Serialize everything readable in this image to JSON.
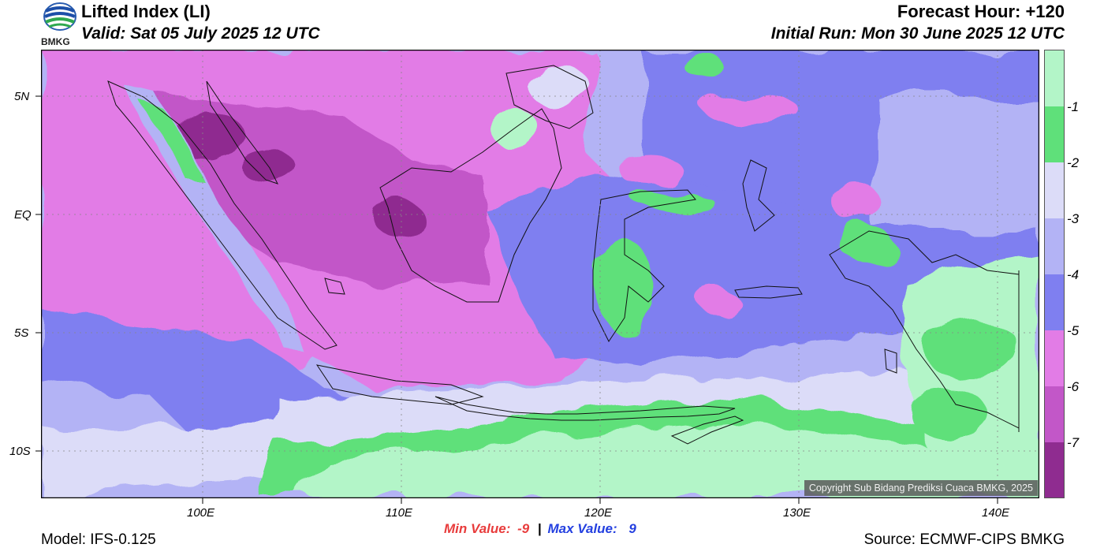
{
  "header": {
    "title": "Lifted Index (LI)",
    "valid": "Valid: Sat 05 July 2025 12 UTC",
    "forecast_hour": "Forecast Hour: +120",
    "initial_run": "Initial Run: Mon 30 June 2025 12 UTC",
    "logo_text": "BMKG"
  },
  "map": {
    "lat_labels": [
      "5N",
      "EQ",
      "5S",
      "10S"
    ],
    "lon_labels": [
      "100E",
      "110E",
      "120E",
      "130E",
      "140E"
    ],
    "copyright": "Copyright Sub Bidang Prediksi Cuaca BMKG, 2025"
  },
  "colorbar": {
    "labels": [
      "-1",
      "-2",
      "-3",
      "-4",
      "-5",
      "-6",
      "-7"
    ],
    "colors": [
      "#b3f5c8",
      "#5fe07a",
      "#dcdcf8",
      "#b3b3f5",
      "#7f7ff0",
      "#e27ce6",
      "#c257c8",
      "#8f2c90"
    ]
  },
  "footer": {
    "model": "Model: IFS-0.125",
    "min_label": "Min Value:",
    "min_value": "-9",
    "separator": "|",
    "max_label": "Max Value:",
    "max_value": "9",
    "source": "Source: ECMWF-CIPS BMKG"
  },
  "colors": {
    "min": "#e83c3c",
    "max": "#2440e0"
  }
}
